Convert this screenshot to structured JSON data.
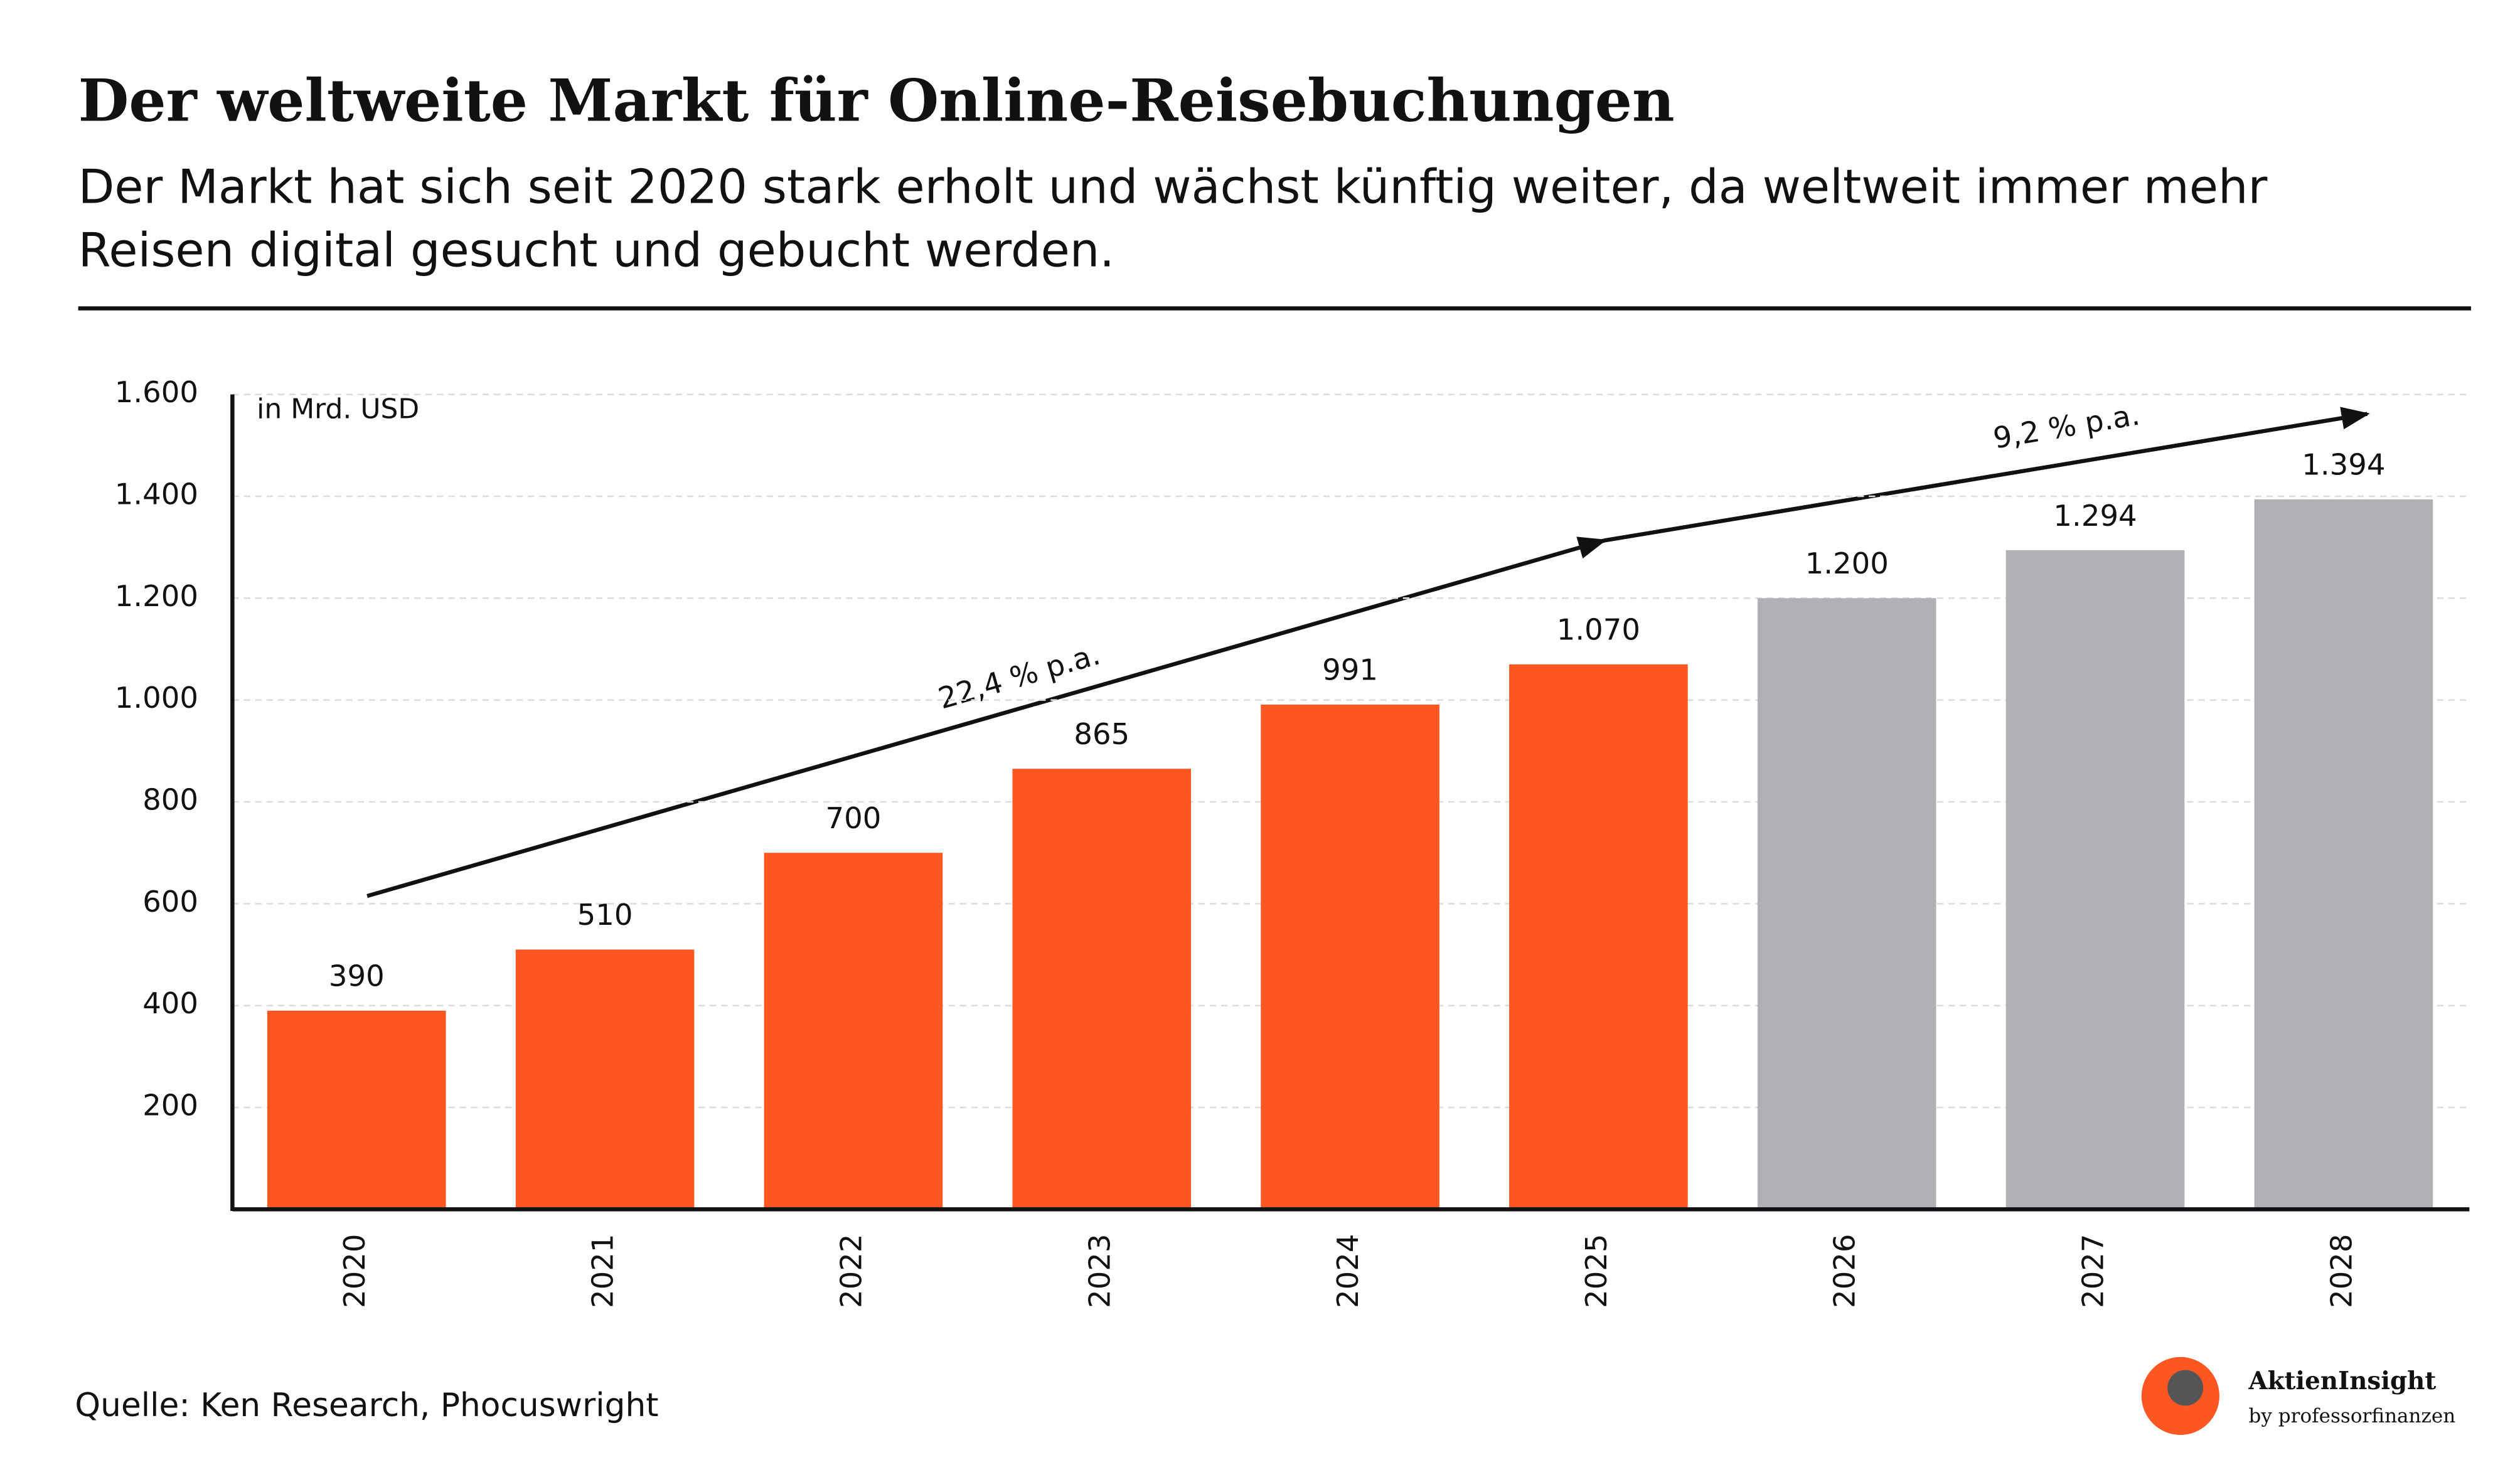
{
  "chart_data": {
    "type": "bar",
    "title": "Der weltweite Markt für Online-Reisebuchungen",
    "subtitle": "Der Markt hat sich seit 2020 stark erholt und wächst künftig weiter, da weltweit immer mehr Reisen digital gesucht und gebucht werden.",
    "y_axis_label": "in Mrd. USD",
    "categories": [
      "2020",
      "2021",
      "2022",
      "2023",
      "2024",
      "2025",
      "2026",
      "2027",
      "2028"
    ],
    "values": [
      390,
      510,
      700,
      865,
      991,
      1070,
      1200,
      1294,
      1394
    ],
    "value_labels": [
      "390",
      "510",
      "700",
      "865",
      "991",
      "1.070",
      "1.200",
      "1.294",
      "1.394"
    ],
    "colors": [
      "#ff5722",
      "#ff5722",
      "#ff5722",
      "#ff5722",
      "#ff5722",
      "#ff5722",
      "#b1b0b4",
      "#b1b0b4",
      "#b1b0b4"
    ],
    "ylim": [
      0,
      1600
    ],
    "yticks": [
      200,
      400,
      600,
      800,
      {
        "value": 1000,
        "label": "1.000"
      },
      {
        "value": 1200,
        "label": "1.200"
      },
      {
        "value": 1400,
        "label": "1.400"
      },
      {
        "value": 1600,
        "label": "1.600"
      }
    ],
    "grid": true,
    "annotations": [
      "22,4 % p.a.",
      "9,2 % p.a."
    ],
    "source": "Quelle: Ken Research, Phocuswright",
    "brand": "AktienInsight",
    "brand_sub": "by professorfinanzen"
  }
}
